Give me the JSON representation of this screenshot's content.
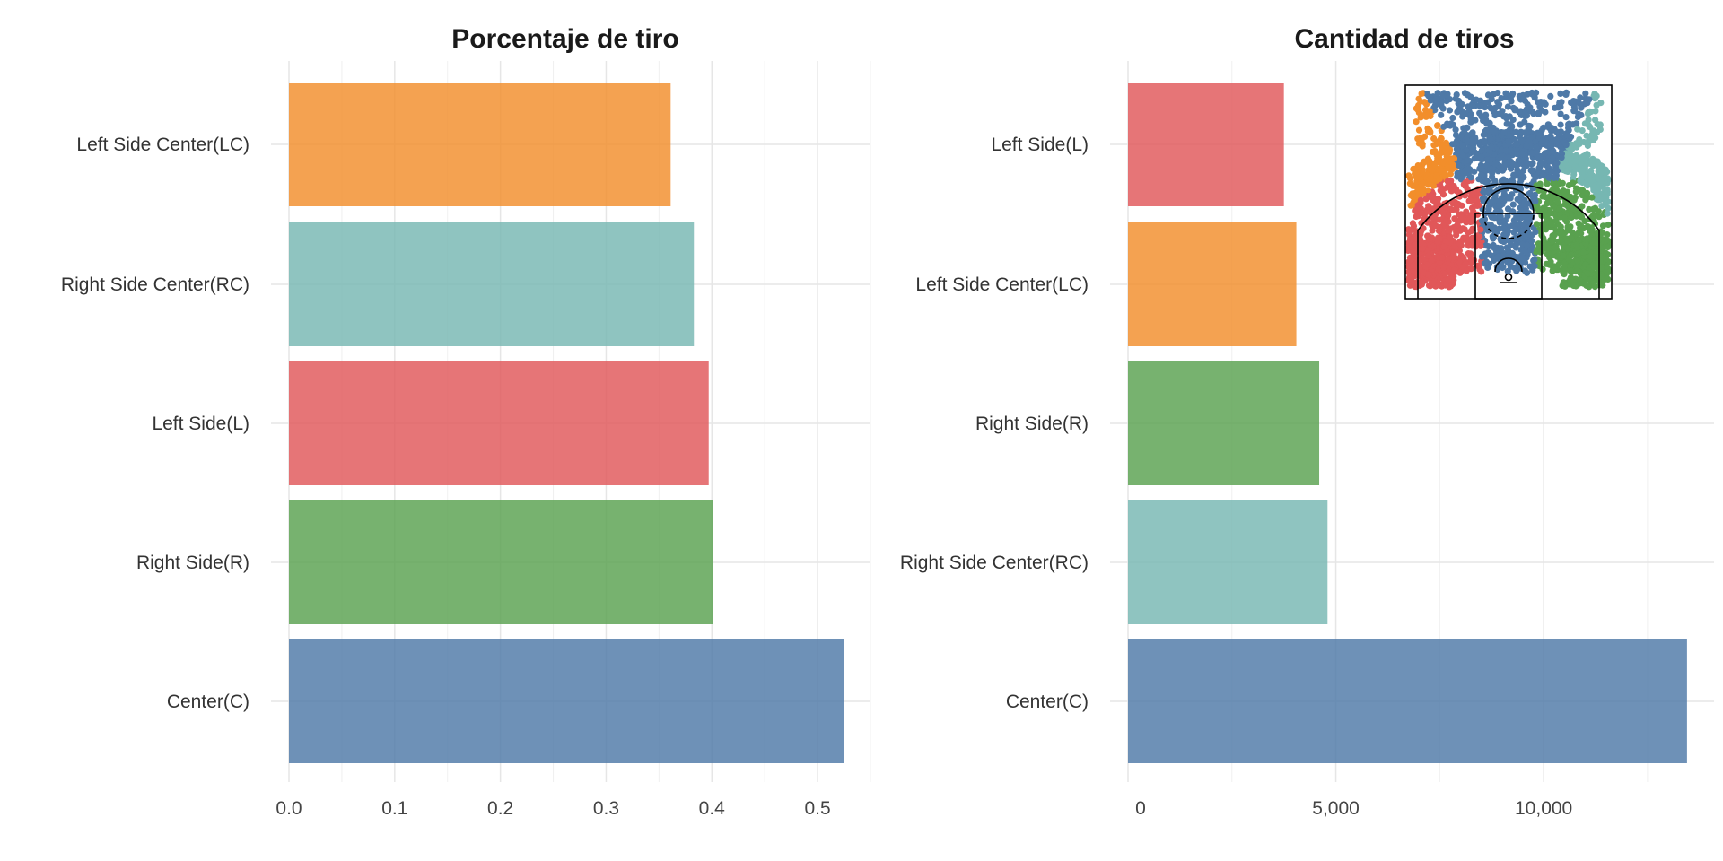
{
  "chart_data": [
    {
      "type": "bar",
      "orientation": "horizontal",
      "title": "Porcentaje de tiro",
      "xlabel": "",
      "ylabel": "",
      "xlim": [
        0,
        0.55
      ],
      "x_ticks": [
        0,
        0.1,
        0.2,
        0.3,
        0.4,
        0.5
      ],
      "x_tick_labels": [
        "0.0",
        "0.1",
        "0.2",
        "0.3",
        "0.4",
        "0.5"
      ],
      "grid": true,
      "categories": [
        "Left Side Center(LC)",
        "Right Side Center(RC)",
        "Left Side(L)",
        "Right Side(R)",
        "Center(C)"
      ],
      "values": [
        0.361,
        0.383,
        0.397,
        0.401,
        0.525
      ],
      "colors": [
        "#F28E2B",
        "#76B7B2",
        "#E15759",
        "#59A14F",
        "#4E79A7"
      ]
    },
    {
      "type": "bar",
      "orientation": "horizontal",
      "title": "Cantidad de tiros",
      "xlabel": "",
      "ylabel": "",
      "xlim": [
        0,
        14100
      ],
      "x_ticks": [
        0,
        5000,
        10000
      ],
      "x_tick_labels": [
        "0",
        "5,000",
        "10,000"
      ],
      "grid": true,
      "categories": [
        "Left Side(L)",
        "Left Side Center(LC)",
        "Right Side(R)",
        "Right Side Center(RC)",
        "Center(C)"
      ],
      "values": [
        3750,
        4050,
        4600,
        4800,
        13450
      ],
      "colors": [
        "#E15759",
        "#F28E2B",
        "#59A14F",
        "#76B7B2",
        "#4E79A7"
      ],
      "inset": {
        "type": "scatter",
        "description_zones": [
          "Left Side Center(LC)",
          "Center(C)",
          "Right Side Center(RC)",
          "Left Side(L)",
          "Right Side(R)"
        ],
        "zone_colors": {
          "LC": "#F28E2B",
          "C": "#4E79A7",
          "RC": "#76B7B2",
          "L": "#E15759",
          "R": "#59A14F"
        }
      }
    }
  ]
}
